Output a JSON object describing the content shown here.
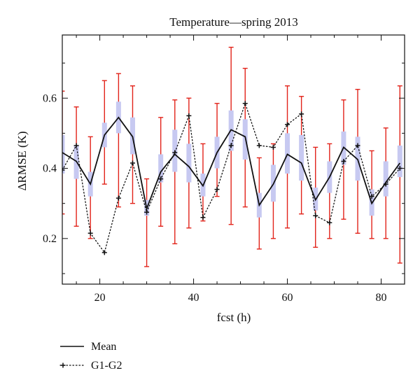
{
  "chart_data": {
    "type": "line",
    "title": "Temperature—spring 2013",
    "xlabel": "fcst (h)",
    "ylabel": "ΔRMSE (K)",
    "xlim": [
      12,
      85
    ],
    "ylim": [
      0.07,
      0.78
    ],
    "xticks": [
      20,
      40,
      60,
      80
    ],
    "yticks": [
      0.2,
      0.4,
      0.6
    ],
    "grid": false,
    "legend": "bottom-left",
    "x": [
      12,
      15,
      18,
      21,
      24,
      27,
      30,
      33,
      36,
      39,
      42,
      45,
      48,
      51,
      54,
      57,
      60,
      63,
      66,
      69,
      72,
      75,
      78,
      81,
      84
    ],
    "series": [
      {
        "name": "Mean",
        "style": "solid",
        "values": [
          0.445,
          0.42,
          0.355,
          0.495,
          0.545,
          0.49,
          0.285,
          0.39,
          0.44,
          0.405,
          0.35,
          0.445,
          0.51,
          0.49,
          0.295,
          0.355,
          0.44,
          0.415,
          0.31,
          0.375,
          0.46,
          0.425,
          0.3,
          0.36,
          0.415
        ]
      },
      {
        "name": "G1-G2",
        "style": "dotted-plus",
        "values": [
          0.395,
          0.465,
          0.215,
          0.16,
          0.315,
          0.415,
          0.275,
          0.37,
          0.445,
          0.55,
          0.26,
          0.34,
          0.465,
          0.585,
          0.465,
          0.46,
          0.525,
          0.555,
          0.265,
          0.245,
          0.42,
          0.465,
          0.32,
          0.355,
          0.4
        ]
      }
    ],
    "whiskers": {
      "color": "#e2231a",
      "low": [
        0.27,
        0.235,
        0.2,
        0.355,
        0.29,
        0.3,
        0.12,
        0.235,
        0.185,
        0.23,
        0.25,
        0.32,
        0.24,
        0.29,
        0.17,
        0.2,
        0.23,
        0.27,
        0.175,
        0.2,
        0.255,
        0.215,
        0.2,
        0.2,
        0.13
      ],
      "high": [
        0.62,
        0.575,
        0.49,
        0.65,
        0.67,
        0.635,
        0.37,
        0.545,
        0.595,
        0.6,
        0.47,
        0.585,
        0.745,
        0.685,
        0.43,
        0.47,
        0.635,
        0.605,
        0.46,
        0.47,
        0.595,
        0.625,
        0.45,
        0.515,
        0.635
      ]
    },
    "boxes": {
      "color": "#c7c9f1",
      "low": [
        0.385,
        0.37,
        0.32,
        0.46,
        0.5,
        0.44,
        0.265,
        0.36,
        0.39,
        0.36,
        0.32,
        0.4,
        0.45,
        0.425,
        0.26,
        0.305,
        0.385,
        0.365,
        0.28,
        0.33,
        0.41,
        0.365,
        0.265,
        0.32,
        0.375
      ],
      "high": [
        0.495,
        0.465,
        0.39,
        0.53,
        0.59,
        0.545,
        0.31,
        0.44,
        0.51,
        0.47,
        0.385,
        0.49,
        0.565,
        0.54,
        0.33,
        0.41,
        0.5,
        0.495,
        0.345,
        0.42,
        0.505,
        0.49,
        0.34,
        0.42,
        0.465
      ]
    }
  },
  "legend": {
    "mean_label": "Mean",
    "g1g2_label": "G1-G2"
  }
}
